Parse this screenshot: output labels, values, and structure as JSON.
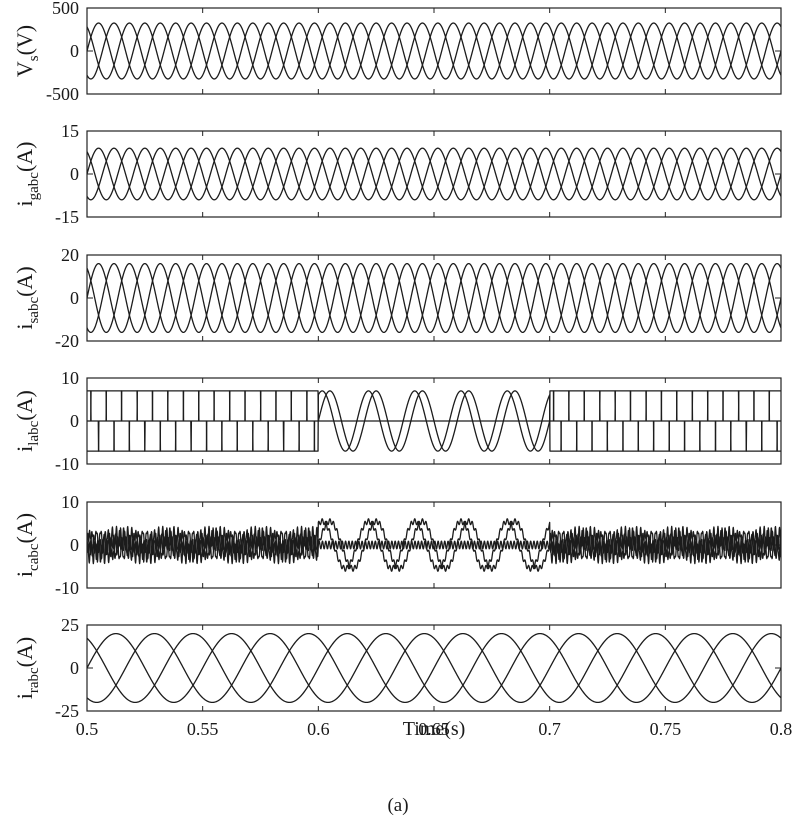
{
  "figure": {
    "caption": "(a)",
    "xlabel": "Time(s)"
  },
  "chart_data": [
    {
      "type": "line",
      "ylabel_main": "V",
      "ylabel_sub": "s",
      "ylabel_unit": "(V)",
      "xlim": [
        0.5,
        0.8
      ],
      "ylim": [
        -500,
        500
      ],
      "yticks": [
        500,
        0,
        -500
      ],
      "waveform": {
        "kind": "sine3",
        "amplitude": 325,
        "frequency_hz": 50,
        "phases": 3
      }
    },
    {
      "type": "line",
      "ylabel_main": "i",
      "ylabel_sub": "gabc",
      "ylabel_unit": "(A)",
      "xlim": [
        0.5,
        0.8
      ],
      "ylim": [
        -15,
        15
      ],
      "yticks": [
        15,
        0,
        -15
      ],
      "waveform": {
        "kind": "sine3",
        "amplitude": 9,
        "frequency_hz": 50,
        "phases": 3
      }
    },
    {
      "type": "line",
      "ylabel_main": "i",
      "ylabel_sub": "sabc",
      "ylabel_unit": "(A)",
      "xlim": [
        0.5,
        0.8
      ],
      "ylim": [
        -20,
        20
      ],
      "yticks": [
        20,
        0,
        -20
      ],
      "waveform": {
        "kind": "sine3",
        "amplitude": 16,
        "frequency_hz": 50,
        "phases": 3
      }
    },
    {
      "type": "line",
      "ylabel_main": "i",
      "ylabel_sub": "labc",
      "ylabel_unit": "(A)",
      "xlim": [
        0.5,
        0.8
      ],
      "ylim": [
        -10,
        10
      ],
      "yticks": [
        10,
        0,
        -10
      ],
      "waveform": {
        "kind": "quasi_square_then_sine",
        "amplitude": 7,
        "frequency_hz": 50,
        "phases": 3,
        "sine_interval": [
          0.6,
          0.7
        ],
        "sine_amplitude": 7
      }
    },
    {
      "type": "line",
      "ylabel_main": "i",
      "ylabel_sub": "cabc",
      "ylabel_unit": "(A)",
      "xlim": [
        0.5,
        0.8
      ],
      "ylim": [
        -10,
        10
      ],
      "yticks": [
        10,
        0,
        -10
      ],
      "waveform": {
        "kind": "ripple_then_sine",
        "amplitude": 2.5,
        "frequency_hz": 50,
        "phases": 3,
        "sine_interval": [
          0.6,
          0.7
        ],
        "sine_amplitude": 5.5
      }
    },
    {
      "type": "line",
      "ylabel_main": "i",
      "ylabel_sub": "rabc",
      "ylabel_unit": "(A)",
      "xlim": [
        0.5,
        0.8
      ],
      "ylim": [
        -25,
        25
      ],
      "yticks": [
        25,
        0,
        -25
      ],
      "waveform": {
        "kind": "sine3",
        "amplitude": 20,
        "frequency_hz": 20,
        "phases": 3
      }
    }
  ],
  "xticks": [
    0.5,
    0.55,
    0.6,
    0.65,
    0.7,
    0.75,
    0.8
  ]
}
